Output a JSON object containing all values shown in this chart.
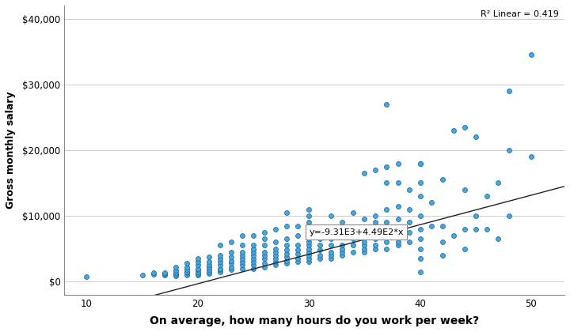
{
  "title": "",
  "xlabel": "On average, how many hours do you work per week?",
  "ylabel": "Gross monthly salary",
  "r2_text": "R² Linear = 0.419",
  "equation_text": "y=-9.31E3+4.49E2*x",
  "xlim": [
    8,
    53
  ],
  "ylim": [
    -2000,
    42000
  ],
  "xticks": [
    10,
    20,
    30,
    40,
    50
  ],
  "yticks": [
    0,
    10000,
    20000,
    30000,
    40000
  ],
  "ytick_labels": [
    "$0",
    "$10,000",
    "$20,000",
    "$30,000",
    "$40,000"
  ],
  "intercept": -9310,
  "slope": 449,
  "dot_color": "#4da6d8",
  "dot_edge_color": "#1a6fa8",
  "line_color": "#222222",
  "background_color": "#ffffff",
  "scatter_x": [
    10,
    15,
    16,
    16,
    17,
    17,
    17,
    18,
    18,
    18,
    18,
    18,
    19,
    19,
    19,
    19,
    19,
    19,
    20,
    20,
    20,
    20,
    20,
    20,
    20,
    20,
    21,
    21,
    21,
    21,
    21,
    21,
    21,
    22,
    22,
    22,
    22,
    22,
    22,
    22,
    22,
    23,
    23,
    23,
    23,
    23,
    23,
    23,
    24,
    24,
    24,
    24,
    24,
    24,
    24,
    24,
    25,
    25,
    25,
    25,
    25,
    25,
    25,
    25,
    25,
    26,
    26,
    26,
    26,
    26,
    26,
    26,
    26,
    27,
    27,
    27,
    27,
    27,
    27,
    27,
    27,
    28,
    28,
    28,
    28,
    28,
    28,
    28,
    28,
    28,
    29,
    29,
    29,
    29,
    29,
    29,
    29,
    30,
    30,
    30,
    30,
    30,
    30,
    30,
    30,
    30,
    30,
    30,
    30,
    31,
    31,
    31,
    31,
    31,
    31,
    32,
    32,
    32,
    32,
    32,
    32,
    32,
    33,
    33,
    33,
    33,
    33,
    33,
    34,
    34,
    34,
    34,
    34,
    35,
    35,
    35,
    35,
    35,
    35,
    35,
    36,
    36,
    36,
    36,
    36,
    36,
    36,
    37,
    37,
    37,
    37,
    37,
    37,
    37,
    37,
    38,
    38,
    38,
    38,
    38,
    38,
    38,
    38,
    39,
    39,
    39,
    39,
    39,
    40,
    40,
    40,
    40,
    40,
    40,
    40,
    40,
    40,
    40,
    41,
    41,
    42,
    42,
    42,
    42,
    43,
    43,
    44,
    44,
    44,
    44,
    45,
    45,
    45,
    46,
    46,
    47,
    47,
    48,
    48,
    48,
    50,
    50
  ],
  "scatter_y": [
    800,
    1000,
    1100,
    1300,
    1000,
    1200,
    1400,
    900,
    1100,
    1400,
    1700,
    2200,
    1000,
    1300,
    1500,
    1800,
    2200,
    2800,
    1000,
    1200,
    1500,
    1800,
    2000,
    2500,
    3000,
    3500,
    1200,
    1500,
    1800,
    2200,
    2500,
    3000,
    3800,
    1500,
    1800,
    2000,
    2500,
    3000,
    3500,
    4000,
    5500,
    1800,
    2200,
    2800,
    3200,
    3800,
    4500,
    6000,
    2000,
    2500,
    3000,
    3500,
    4000,
    4500,
    5500,
    7000,
    2000,
    2500,
    3000,
    3500,
    4000,
    4500,
    5000,
    5500,
    7000,
    2200,
    2800,
    3500,
    4000,
    4500,
    5500,
    6500,
    7500,
    2500,
    3000,
    3500,
    4000,
    4500,
    5000,
    6000,
    8000,
    2800,
    3200,
    3800,
    4200,
    4800,
    5500,
    6500,
    8500,
    10500,
    3000,
    3500,
    4200,
    4800,
    5500,
    7000,
    8500,
    3000,
    3500,
    4000,
    4500,
    5000,
    5500,
    6000,
    6500,
    7500,
    9000,
    10000,
    11000,
    3500,
    4000,
    4800,
    5500,
    6500,
    8000,
    3500,
    4000,
    4500,
    5500,
    6500,
    8000,
    10000,
    4000,
    4500,
    5000,
    5500,
    7000,
    9000,
    4500,
    5500,
    6500,
    8000,
    10500,
    4500,
    5000,
    5500,
    6000,
    7000,
    9500,
    16500,
    5000,
    5500,
    6500,
    7500,
    9000,
    10000,
    17000,
    5000,
    6000,
    7000,
    9000,
    11000,
    15000,
    17500,
    27000,
    5500,
    6000,
    7000,
    8000,
    9500,
    11500,
    15000,
    18000,
    6000,
    7500,
    9000,
    11000,
    14000,
    1500,
    3500,
    5000,
    6500,
    8000,
    10000,
    13000,
    15000,
    18000,
    18000,
    8500,
    12000,
    4000,
    6000,
    8500,
    15500,
    7000,
    23000,
    5000,
    8000,
    14000,
    23500,
    8000,
    10000,
    22000,
    8000,
    13000,
    6500,
    15000,
    10000,
    20000,
    29000,
    19000,
    34500
  ]
}
